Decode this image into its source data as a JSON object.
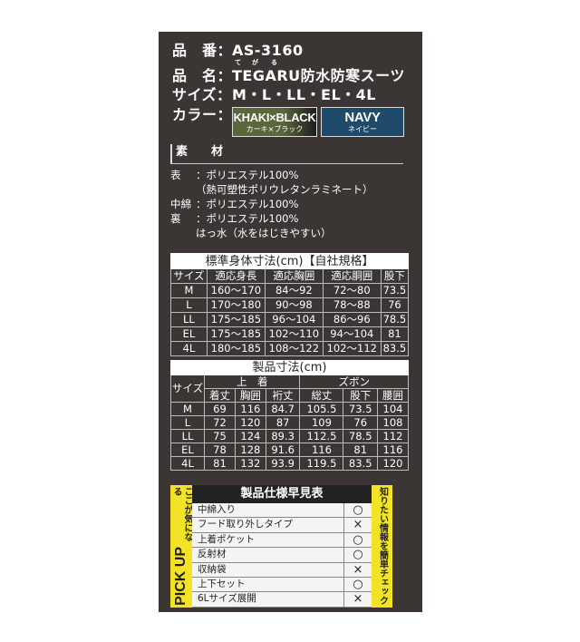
{
  "spec": {
    "number_label": "品　番：",
    "number": "AS-3160",
    "name_label": "品　名：",
    "name": "TEGARU防水防寒スーツ",
    "name_ruby": [
      "て",
      "が",
      "る"
    ],
    "size_label": "サイズ：",
    "sizes": "M・L・LL・EL・4L",
    "color_label": "カラー：",
    "colors": [
      {
        "en": "KHAKI×BLACK",
        "jp": "カーキ×ブラック",
        "color": "#55603a"
      },
      {
        "en": "NAVY",
        "jp": "ネイビー",
        "color": "#1f4a6a"
      }
    ]
  },
  "material": {
    "heading": "素　　材",
    "lines": [
      {
        "key": "表",
        "value": "：ポリエステル100%"
      },
      {
        "key": "",
        "value": "（熱可塑性ポリウレタンラミネート）"
      },
      {
        "key": "中綿",
        "value": "：ポリエステル100%"
      },
      {
        "key": "裏",
        "value": "：ポリエステル100%"
      },
      {
        "key": "",
        "value": "はっ水（水をはじきやすい）"
      }
    ]
  },
  "body_table": {
    "title": "標準身体寸法(cm)【自社規格】",
    "headers": [
      "サイズ",
      "適応身長",
      "適応胸囲",
      "適応胴囲",
      "股下"
    ],
    "rows": [
      [
        "M",
        "160〜170",
        "84〜92",
        "72〜80",
        "73.5"
      ],
      [
        "L",
        "170〜180",
        "90〜98",
        "78〜88",
        "76"
      ],
      [
        "LL",
        "175〜185",
        "96〜104",
        "86〜96",
        "78.5"
      ],
      [
        "EL",
        "175〜185",
        "102〜110",
        "94〜104",
        "81"
      ],
      [
        "4L",
        "180〜185",
        "108〜122",
        "102〜112",
        "83.5"
      ]
    ]
  },
  "product_table": {
    "title": "製品寸法(cm)",
    "size_header": "サイズ",
    "groups": [
      "上　着",
      "ズボン"
    ],
    "headers": [
      "着丈",
      "胸囲",
      "裄丈",
      "総丈",
      "股下",
      "腰囲"
    ],
    "rows": [
      [
        "M",
        "69",
        "116",
        "84.7",
        "105.5",
        "73.5",
        "104"
      ],
      [
        "L",
        "72",
        "120",
        "87",
        "109",
        "76",
        "108"
      ],
      [
        "LL",
        "75",
        "124",
        "89.3",
        "112.5",
        "78.5",
        "112"
      ],
      [
        "EL",
        "78",
        "128",
        "91.6",
        "116",
        "81",
        "116"
      ],
      [
        "4L",
        "81",
        "132",
        "93.9",
        "119.5",
        "83.5",
        "120"
      ]
    ]
  },
  "pickup": {
    "left_caption": "ここが気になる",
    "left_title": "PICK UP",
    "right_caption": "知りたい情報を簡単チェック",
    "title": "製品仕様早見表",
    "items": [
      {
        "name": "中綿入り",
        "mark": "○"
      },
      {
        "name": "フード取り外しタイプ",
        "mark": "×"
      },
      {
        "name": "上着ポケット",
        "mark": "○"
      },
      {
        "name": "反射材",
        "mark": "○"
      },
      {
        "name": "収納袋",
        "mark": "×"
      },
      {
        "name": "上下セット",
        "mark": "○"
      },
      {
        "name": "6Lサイズ展開",
        "mark": "×"
      }
    ]
  }
}
